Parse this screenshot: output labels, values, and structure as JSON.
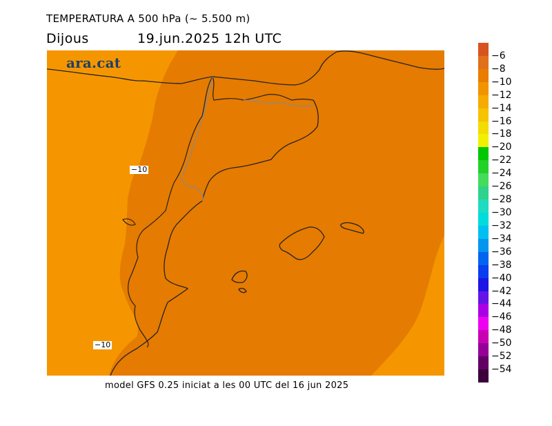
{
  "header": {
    "title": "TEMPERATURA A 500 hPa (~ 5.500 m)",
    "day": "Dijous",
    "datetime": "19.jun.2025 12h UTC"
  },
  "map": {
    "logo": "ara.cat",
    "contour_labels": [
      "−10",
      "−10"
    ]
  },
  "footer": {
    "model_info": "model GFS 0.25 iniciat a les 00 UTC del 16 jun 2025"
  },
  "legend": {
    "labels": [
      "−6",
      "−8",
      "−10",
      "−12",
      "−14",
      "−16",
      "−18",
      "−20",
      "−22",
      "−24",
      "−26",
      "−28",
      "−30",
      "−32",
      "−34",
      "−36",
      "−38",
      "−40",
      "−42",
      "−44",
      "−46",
      "−48",
      "−50",
      "−52",
      "−54"
    ],
    "colors": [
      "#d8541e",
      "#e0701a",
      "#ea7c00",
      "#f29400",
      "#f7ab00",
      "#f5c300",
      "#f3dc00",
      "#f0f000",
      "#00c800",
      "#22d228",
      "#44dc5a",
      "#2ed28c",
      "#1edcc0",
      "#00dcdc",
      "#00c0f0",
      "#0096f0",
      "#0064f0",
      "#0a3cf0",
      "#1e14e6",
      "#6414e6",
      "#aa00e6",
      "#f000f0",
      "#c800b4",
      "#960096",
      "#640064",
      "#3c003c"
    ]
  },
  "map_colors": {
    "main_field": "#e57b00",
    "warmer_edges": "#f59600",
    "coastline": "#222222",
    "borders": "#8a8a8a"
  }
}
